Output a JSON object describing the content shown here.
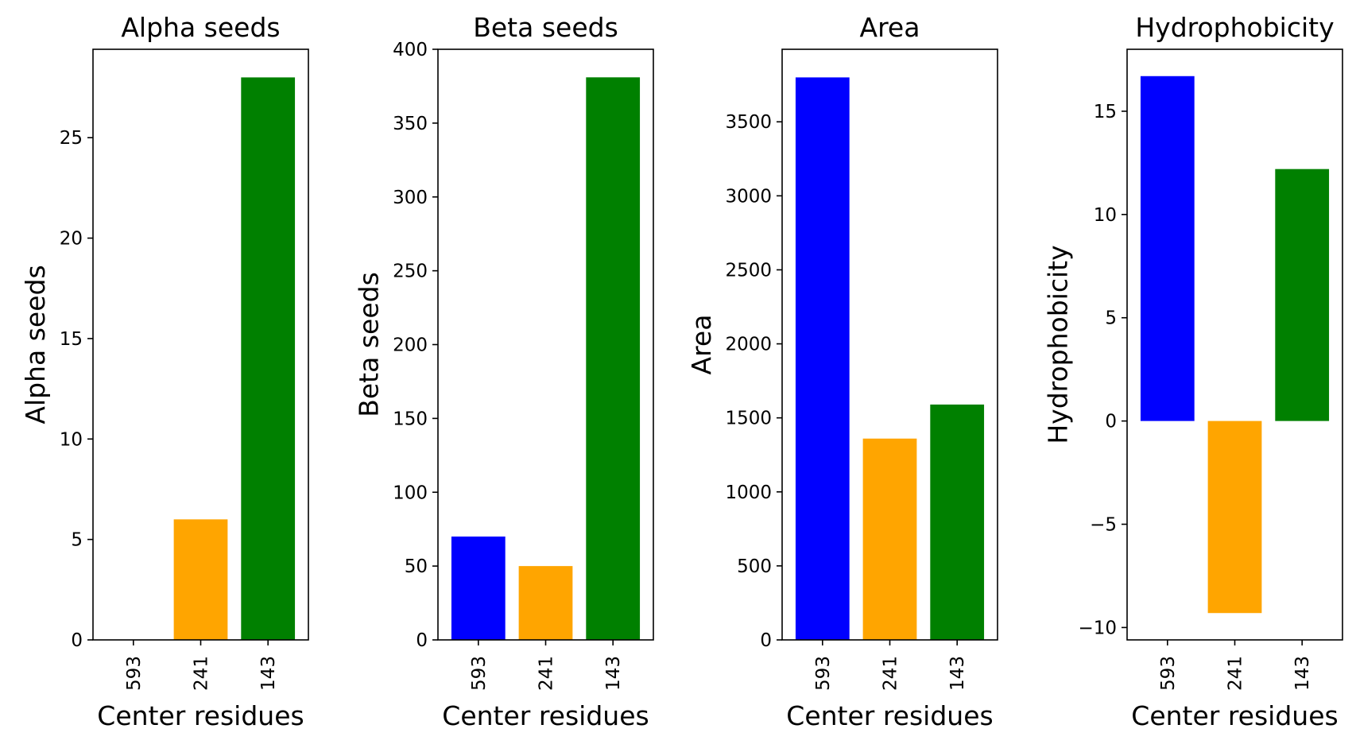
{
  "colors": {
    "blue": "#0000ff",
    "orange": "#ffa500",
    "green": "#008000",
    "axis": "#000000",
    "background": "#ffffff"
  },
  "chart_data": [
    {
      "type": "bar",
      "title": "Alpha seeds",
      "xlabel": "Center residues",
      "ylabel": "Alpha seeds",
      "categories": [
        "593",
        "241",
        "143"
      ],
      "values": [
        0,
        6,
        28
      ],
      "bar_colors": [
        "#0000ff",
        "#ffa500",
        "#008000"
      ],
      "ylim": [
        0,
        29.4
      ],
      "yticks": [
        0,
        5,
        10,
        15,
        20,
        25
      ],
      "ytick_labels": [
        "0",
        "5",
        "10",
        "15",
        "20",
        "25"
      ],
      "grid": false,
      "legend": "none"
    },
    {
      "type": "bar",
      "title": "Beta seeds",
      "xlabel": "Center residues",
      "ylabel": "Beta seeds",
      "categories": [
        "593",
        "241",
        "143"
      ],
      "values": [
        70,
        50,
        381
      ],
      "bar_colors": [
        "#0000ff",
        "#ffa500",
        "#008000"
      ],
      "ylim": [
        0,
        400
      ],
      "yticks": [
        0,
        50,
        100,
        150,
        200,
        250,
        300,
        350,
        400
      ],
      "ytick_labels": [
        "0",
        "50",
        "100",
        "150",
        "200",
        "250",
        "300",
        "350",
        "400"
      ],
      "grid": false,
      "legend": "none"
    },
    {
      "type": "bar",
      "title": "Area",
      "xlabel": "Center residues",
      "ylabel": "Area",
      "categories": [
        "593",
        "241",
        "143"
      ],
      "values": [
        3800,
        1360,
        1590
      ],
      "bar_colors": [
        "#0000ff",
        "#ffa500",
        "#008000"
      ],
      "ylim": [
        0,
        3990
      ],
      "yticks": [
        0,
        500,
        1000,
        1500,
        2000,
        2500,
        3000,
        3500
      ],
      "ytick_labels": [
        "0",
        "500",
        "1000",
        "1500",
        "2000",
        "2500",
        "3000",
        "3500"
      ],
      "grid": false,
      "legend": "none"
    },
    {
      "type": "bar",
      "title": "Hydrophobicity",
      "xlabel": "Center residues",
      "ylabel": "Hydrophobicity",
      "categories": [
        "593",
        "241",
        "143"
      ],
      "values": [
        16.7,
        -9.3,
        12.2
      ],
      "bar_colors": [
        "#0000ff",
        "#ffa500",
        "#008000"
      ],
      "ylim": [
        -10.6,
        18
      ],
      "yticks": [
        -10,
        -5,
        0,
        5,
        10,
        15
      ],
      "ytick_labels": [
        "−10",
        "−5",
        "0",
        "5",
        "10",
        "15"
      ],
      "grid": false,
      "legend": "none"
    }
  ]
}
